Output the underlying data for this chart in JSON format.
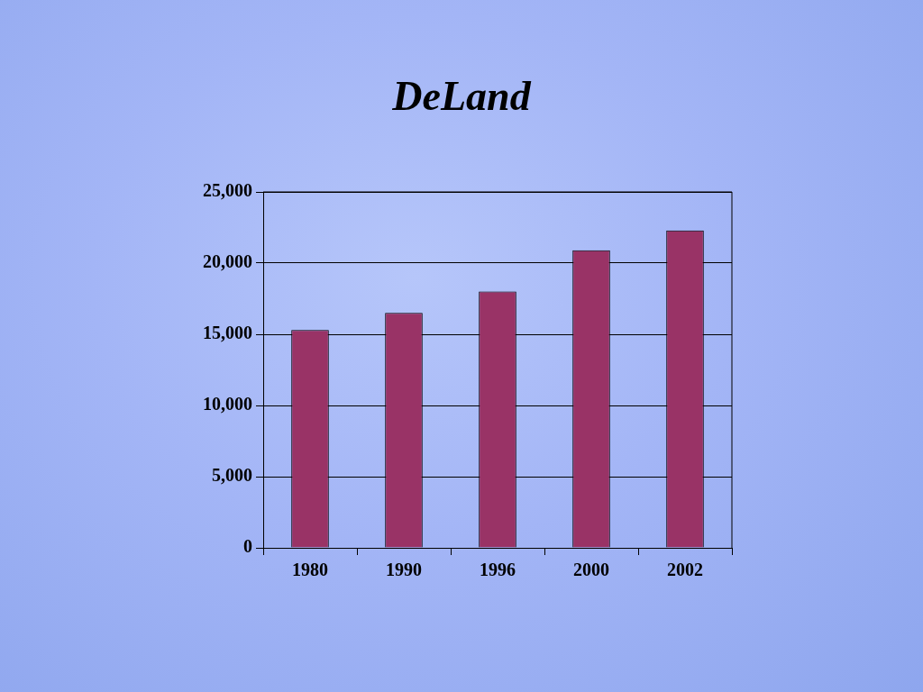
{
  "chart_data": {
    "type": "bar",
    "title": "DeLand",
    "categories": [
      "1980",
      "1990",
      "1996",
      "2000",
      "2002"
    ],
    "values": [
      15300,
      16500,
      18000,
      20900,
      22300
    ],
    "color": "#993366",
    "ylim": [
      0,
      25000
    ],
    "yticks": [
      0,
      {
        "value": 5000,
        "label": "5,000"
      },
      {
        "value": 10000,
        "label": "10,000"
      },
      {
        "value": 15000,
        "label": "15,000"
      },
      {
        "value": 20000,
        "label": "20,000"
      },
      {
        "value": 25000,
        "label": "25,000"
      }
    ],
    "grid": "y"
  }
}
